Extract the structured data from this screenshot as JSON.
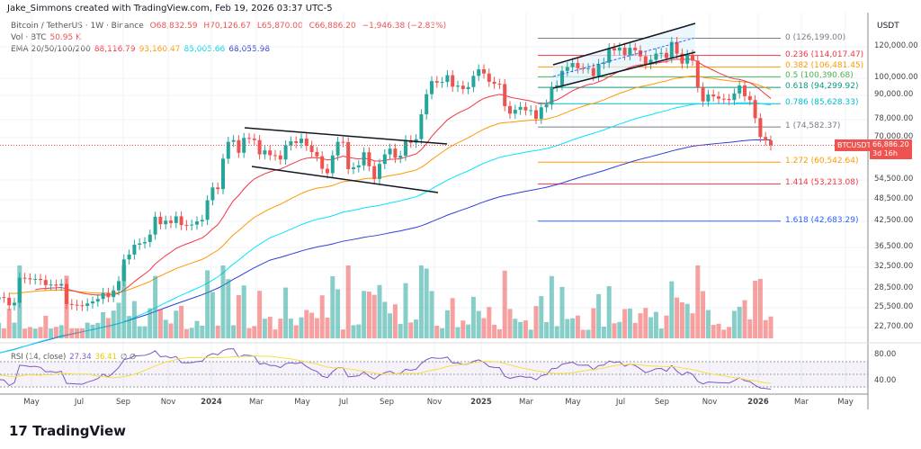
{
  "credit": "Jake_Simmons created with TradingView.com, Feb 19, 2026 03:37 UTC-5",
  "legend": {
    "symbol": "Bitcoin / TetherUS · 1W · Binance",
    "o": "O68,832.59",
    "h": "H70,126.67",
    "l": "L65,870.00",
    "c": "C66,886.20",
    "chg": "−1,946.38 (−2.83%)",
    "vol_label": "Vol · BTC",
    "vol": "50.95 K",
    "ema_label": "EMA 20/50/100/200",
    "ema20": "88,116.79",
    "ema50": "93,160.47",
    "ema100": "85,005.66",
    "ema200": "68,055.98",
    "rsi_label": "RSI (14, close)",
    "rsi": "27.34",
    "rsi_ma": "36.41",
    "rsi_extra": "∅ ∅"
  },
  "colors": {
    "up": "#26a69a",
    "down": "#ef5350",
    "ema20": "#f23645",
    "ema50": "#ff9800",
    "ema100": "#00e5ff",
    "ema200": "#2f3fd6",
    "rsi": "#7e57c2",
    "rsi_ma": "#f5e042"
  },
  "axis": {
    "currency": "USDT",
    "ticks": [
      "120,000.00",
      "100,000.00",
      "90,000.00",
      "78,000.00",
      "70,000.00",
      "54,500.00",
      "48,500.00",
      "42,500.00",
      "36,500.00",
      "32,500.00",
      "28,500.00",
      "25,500.00",
      "22,700.00"
    ],
    "rsi_ticks": [
      "80.00",
      "40.00"
    ],
    "price_tag": {
      "symbol": "BTCUSDT",
      "price": "66,886.20",
      "countdown": "3d 16h"
    }
  },
  "time_axis": [
    "May",
    "Jul",
    "Sep",
    "Nov",
    "2024",
    "Mar",
    "May",
    "Jul",
    "Sep",
    "Nov",
    "2025",
    "Mar",
    "May",
    "Jul",
    "Sep",
    "Nov",
    "2026",
    "Mar",
    "May"
  ],
  "fib": [
    {
      "label": "0 (126,199.00)",
      "price": 126199,
      "color": "#787b86"
    },
    {
      "label": "0.236 (114,017.47)",
      "price": 114017.47,
      "color": "#f23645"
    },
    {
      "label": "0.382 (106,481.45)",
      "price": 106481.45,
      "color": "#ff9800"
    },
    {
      "label": "0.5 (100,390.68)",
      "price": 100390.68,
      "color": "#4caf50"
    },
    {
      "label": "0.618 (94,299.92)",
      "price": 94299.92,
      "color": "#089981"
    },
    {
      "label": "0.786 (85,628.33)",
      "price": 85628.33,
      "color": "#00bcd4"
    },
    {
      "label": "1 (74,582.37)",
      "price": 74582.37,
      "color": "#787b86"
    },
    {
      "label": "1.272 (60,542.64)",
      "price": 60542.64,
      "color": "#ff9800"
    },
    {
      "label": "1.414 (53,213.08)",
      "price": 53213.08,
      "color": "#f23645"
    },
    {
      "label": "1.618 (42,683.29)",
      "price": 42683.29,
      "color": "#2962ff"
    }
  ],
  "chart_data": {
    "type": "candlestick",
    "title": "Bitcoin / TetherUS · 1W · Binance",
    "scale": "log",
    "ylim": [
      21000,
      135000
    ],
    "grid": true,
    "weekly_closes": [
      28000,
      29200,
      29300,
      27600,
      28900,
      26900,
      27100,
      26800,
      27200,
      27100,
      25900,
      26300,
      30500,
      30400,
      30200,
      30300,
      30100,
      29200,
      29300,
      29100,
      29400,
      26100,
      26000,
      25900,
      25800,
      26200,
      26500,
      26900,
      27900,
      27200,
      28300,
      29900,
      34000,
      35000,
      37100,
      37400,
      37700,
      39400,
      43800,
      41900,
      42800,
      42200,
      43900,
      41700,
      41600,
      41800,
      42600,
      43000,
      48300,
      52100,
      51600,
      61800,
      68300,
      69000,
      64000,
      69900,
      69600,
      69000,
      63400,
      64900,
      63100,
      63000,
      61500,
      66900,
      68500,
      67800,
      69600,
      66700,
      64300,
      62700,
      58200,
      56700,
      63000,
      68300,
      68200,
      58100,
      58700,
      59400,
      64200,
      59100,
      54800,
      59900,
      63400,
      65600,
      62100,
      62900,
      69000,
      67900,
      69400,
      80400,
      90600,
      97900,
      97000,
      97400,
      101400,
      94700,
      95300,
      93400,
      94500,
      101000,
      105000,
      102400,
      97500,
      96400,
      96200,
      84400,
      80700,
      82600,
      84000,
      82300,
      82400,
      78300,
      83800,
      85200,
      94700,
      95500,
      104000,
      106400,
      109000,
      105700,
      105600,
      105700,
      100900,
      108400,
      109200,
      119100,
      117400,
      119400,
      114200,
      119300,
      117500,
      113400,
      108200,
      111100,
      115300,
      115700,
      112200,
      123500,
      115200,
      108600,
      114500,
      110500,
      94400,
      86800,
      90400,
      89400,
      88200,
      88100,
      87500,
      91000,
      95400,
      89500,
      87500,
      78600,
      70300,
      68832.59,
      66886.2
    ]
  }
}
